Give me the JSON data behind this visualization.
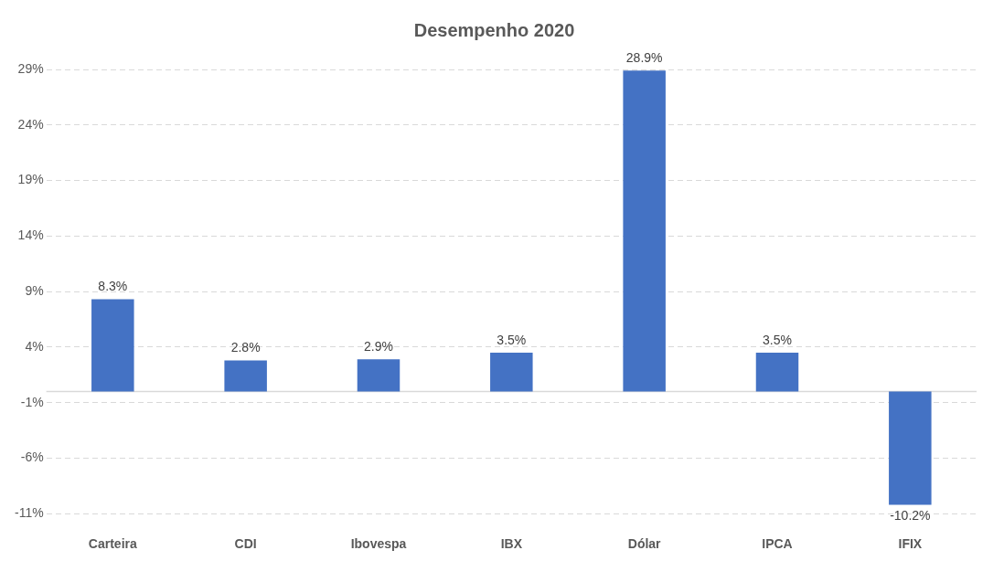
{
  "chart_data": {
    "type": "bar",
    "title": "Desempenho 2020",
    "categories": [
      "Carteira",
      "CDI",
      "Ibovespa",
      "IBX",
      "Dólar",
      "IPCA",
      "IFIX"
    ],
    "values": [
      8.3,
      2.8,
      2.9,
      3.5,
      28.9,
      3.5,
      -10.2
    ],
    "value_labels": [
      "8.3%",
      "2.8%",
      "2.9%",
      "3.5%",
      "28.9%",
      "3.5%",
      "-10.2%"
    ],
    "color": "#4472c4",
    "ylim": [
      -11,
      29
    ],
    "yticks": [
      {
        "value": -11,
        "label": "-11%"
      },
      {
        "value": -6,
        "label": "-6%"
      },
      {
        "value": -1,
        "label": "-1%"
      },
      {
        "value": 4,
        "label": "4%"
      },
      {
        "value": 9,
        "label": "9%"
      },
      {
        "value": 14,
        "label": "14%"
      },
      {
        "value": 19,
        "label": "19%"
      },
      {
        "value": 24,
        "label": "24%"
      },
      {
        "value": 29,
        "label": "29%"
      }
    ],
    "ref_lines": [
      {
        "axis": "y",
        "value": 0,
        "color": "#d9d9d9",
        "line_style": "solid"
      }
    ],
    "grid": "y",
    "legend": false
  }
}
